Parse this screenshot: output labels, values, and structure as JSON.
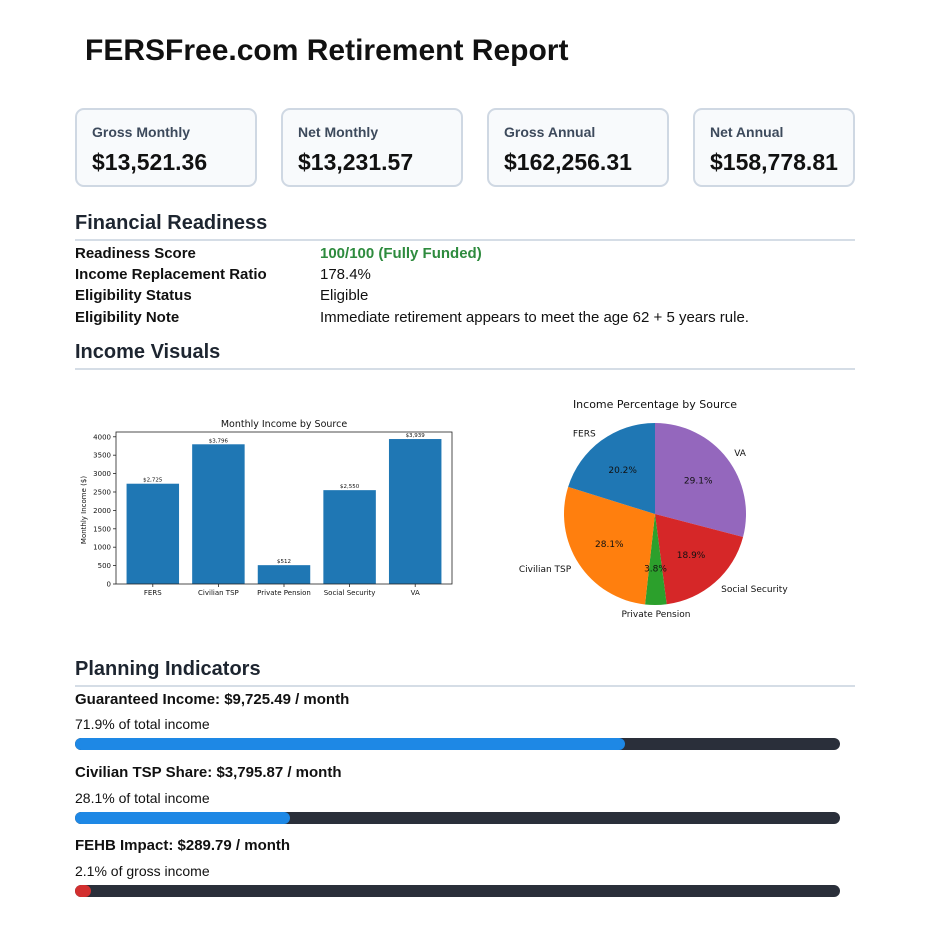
{
  "report": {
    "title": "FERSFree.com Retirement Report"
  },
  "summary": [
    {
      "label": "Gross Monthly",
      "value": "$13,521.36"
    },
    {
      "label": "Net Monthly",
      "value": "$13,231.57"
    },
    {
      "label": "Gross Annual",
      "value": "$162,256.31"
    },
    {
      "label": "Net Annual",
      "value": "$158,778.81"
    }
  ],
  "readiness": {
    "heading": "Financial Readiness",
    "rows": [
      {
        "label": "Readiness Score",
        "value": "100/100 (Fully Funded)"
      },
      {
        "label": "Income Replacement Ratio",
        "value": "178.4%"
      },
      {
        "label": "Eligibility Status",
        "value": "Eligible"
      },
      {
        "label": "Eligibility Note",
        "value": "Immediate retirement appears to meet the age 62 + 5 years rule."
      }
    ],
    "score_color": "#2e8b3e"
  },
  "visuals": {
    "heading": "Income Visuals"
  },
  "chart_data": [
    {
      "type": "bar",
      "title": "Monthly Income by Source",
      "xlabel": "",
      "ylabel": "Monthly Income ($)",
      "categories": [
        "FERS",
        "Civilian TSP",
        "Private Pension",
        "Social Security",
        "VA"
      ],
      "values": [
        2725,
        3796,
        512,
        2550,
        3939
      ],
      "value_labels": [
        "$2,725",
        "$3,796",
        "$512",
        "$2,550",
        "$3,939"
      ],
      "yticks": [
        0,
        500,
        1000,
        1500,
        2000,
        2500,
        3000,
        3500,
        4000
      ],
      "ylim": [
        0,
        4130
      ],
      "color": "#1f77b4"
    },
    {
      "type": "pie",
      "title": "Income Percentage by Source",
      "labels": [
        "VA",
        "Social Security",
        "Private Pension",
        "Civilian TSP",
        "FERS"
      ],
      "values": [
        29.1,
        18.9,
        3.8,
        28.1,
        20.2
      ],
      "pct_labels": [
        "29.1%",
        "18.9%",
        "3.8%",
        "28.1%",
        "20.2%"
      ],
      "colors": [
        "#9467bd",
        "#d62728",
        "#2ca02c",
        "#ff7f0e",
        "#1f77b4"
      ]
    }
  ],
  "indicators": {
    "heading": "Planning Indicators",
    "items": [
      {
        "title": "Guaranteed Income: $9,725.49 / month",
        "subtitle": "71.9% of total income",
        "percent": 71.9,
        "color": "#1e88e5"
      },
      {
        "title": "Civilian TSP Share: $3,795.87 / month",
        "subtitle": "28.1% of total income",
        "percent": 28.1,
        "color": "#1e88e5"
      },
      {
        "title": "FEHB Impact: $289.79 / month",
        "subtitle": "2.1% of gross income",
        "percent": 2.1,
        "color": "#d32f2f"
      }
    ]
  }
}
